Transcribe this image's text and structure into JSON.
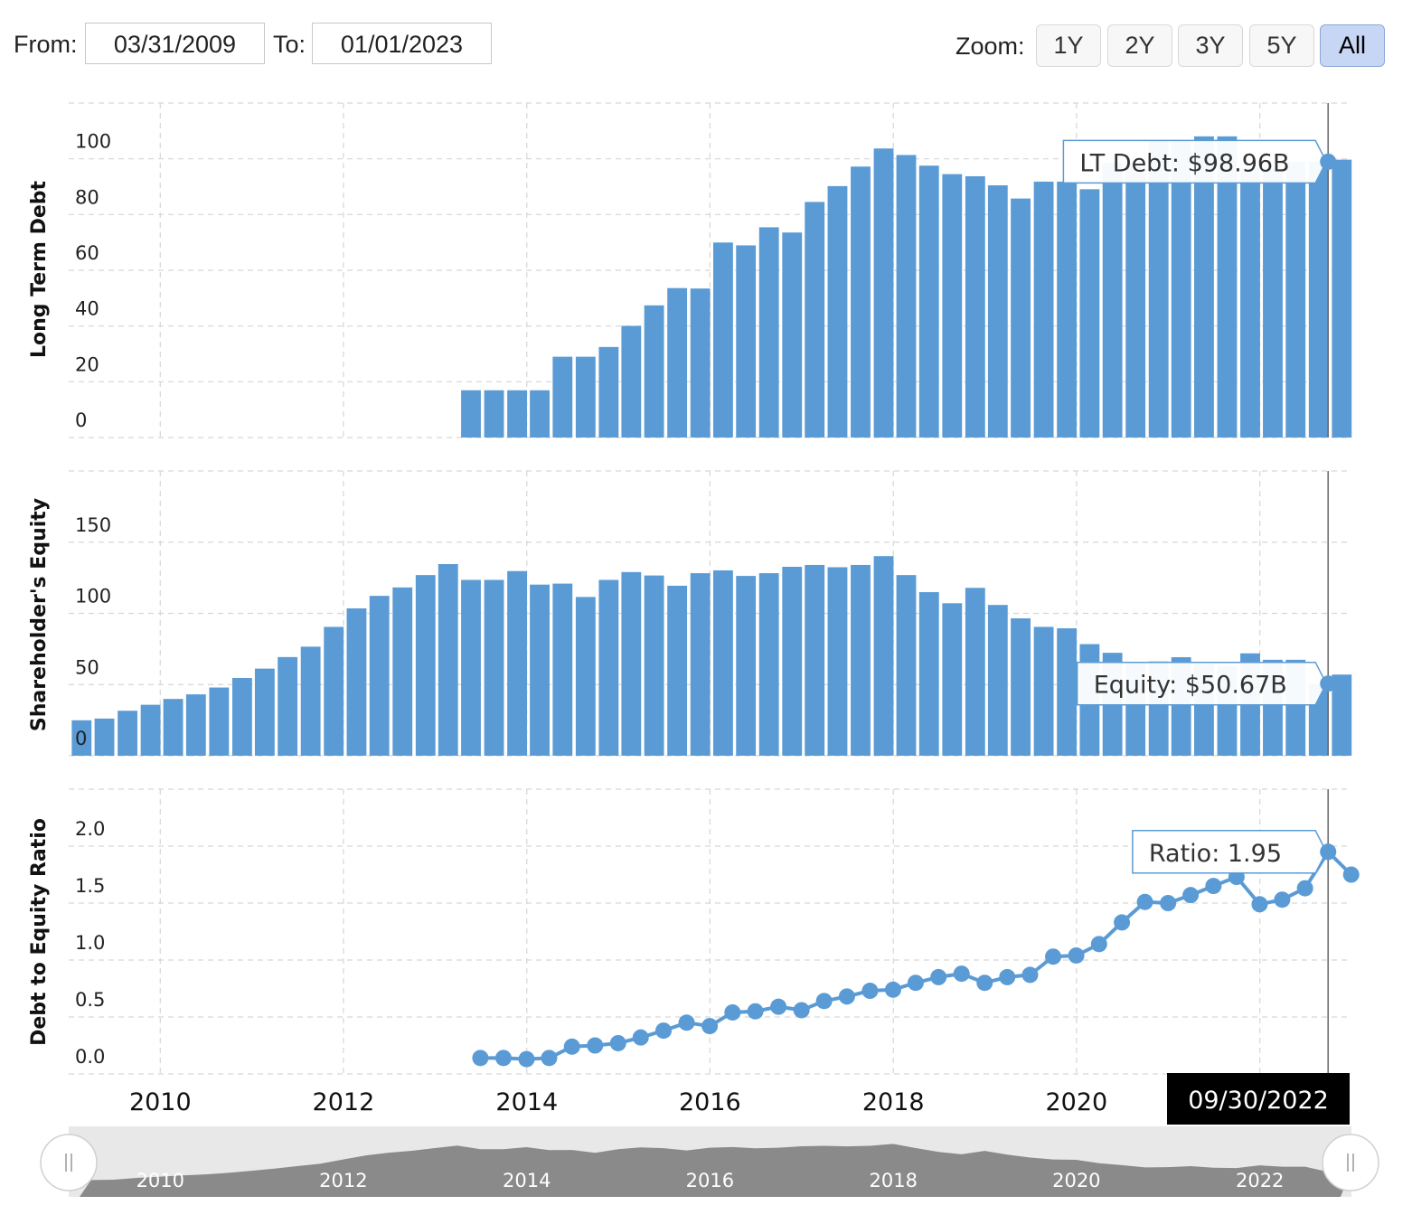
{
  "range": {
    "from_label": "From:",
    "from_value": "03/31/2009",
    "to_label": "To:",
    "to_value": "01/01/2023"
  },
  "zoom": {
    "label": "Zoom:",
    "buttons": [
      "1Y",
      "2Y",
      "3Y",
      "5Y",
      "All"
    ],
    "active": "All"
  },
  "colors": {
    "bar": "#5b9bd5",
    "line": "#5b9bd5",
    "selected_button": "#c7d6f4",
    "navigator_fill": "#8a8a8a"
  },
  "tooltips": {
    "debt": "LT Debt: $98.96B",
    "equity": "Equity: $50.67B",
    "ratio": "Ratio: 1.95"
  },
  "crosshair_date": "09/30/2022",
  "navigator": {
    "ticks": [
      "2010",
      "2012",
      "2014",
      "2016",
      "2018",
      "2020",
      "2022"
    ],
    "left_handle_icon": "grip-icon",
    "right_handle_icon": "grip-icon"
  },
  "chart_data": [
    {
      "type": "bar",
      "ylabel": "Long Term Debt",
      "ylim": [
        0,
        120
      ],
      "yticks": [
        "0",
        "20",
        "40",
        "60",
        "80",
        "100"
      ],
      "x": [
        "2009-03-31",
        "2009-06-30",
        "2009-09-30",
        "2009-12-31",
        "2010-03-31",
        "2010-06-30",
        "2010-09-30",
        "2010-12-31",
        "2011-03-31",
        "2011-06-30",
        "2011-09-30",
        "2011-12-31",
        "2012-03-31",
        "2012-06-30",
        "2012-09-30",
        "2012-12-31",
        "2013-03-31",
        "2013-06-30",
        "2013-09-30",
        "2013-12-31",
        "2014-03-31",
        "2014-06-30",
        "2014-09-30",
        "2014-12-31",
        "2015-03-31",
        "2015-06-30",
        "2015-09-30",
        "2015-12-31",
        "2016-03-31",
        "2016-06-30",
        "2016-09-30",
        "2016-12-31",
        "2017-03-31",
        "2017-06-30",
        "2017-09-30",
        "2017-12-31",
        "2018-03-31",
        "2018-06-30",
        "2018-09-30",
        "2018-12-31",
        "2019-03-31",
        "2019-06-30",
        "2019-09-30",
        "2019-12-31",
        "2020-03-31",
        "2020-06-30",
        "2020-09-30",
        "2020-12-31",
        "2021-03-31",
        "2021-06-30",
        "2021-09-30",
        "2021-12-31",
        "2022-03-31",
        "2022-06-30",
        "2022-09-30",
        "2022-12-31"
      ],
      "values": [
        0,
        0,
        0,
        0,
        0,
        0,
        0,
        0,
        0,
        0,
        0,
        0,
        0,
        0,
        0,
        0,
        0,
        16.96,
        16.96,
        16.96,
        16.96,
        28.99,
        28.99,
        32.48,
        40.06,
        47.42,
        53.62,
        53.46,
        69.96,
        68.94,
        75.43,
        73.56,
        84.53,
        90.2,
        97.21,
        103.7,
        101.36,
        97.54,
        94.5,
        93.74,
        90.48,
        85.75,
        91.81,
        91.81,
        89.09,
        98.67,
        98.67,
        106.63,
        106.5,
        108.05,
        108.05,
        96.5,
        96.5,
        98.96,
        98.96,
        99.69
      ],
      "xticks": [
        "2010",
        "2012",
        "2014",
        "2016",
        "2018",
        "2020"
      ]
    },
    {
      "type": "bar",
      "ylabel": "Shareholder's Equity",
      "ylim": [
        0,
        200
      ],
      "yticks": [
        "0",
        "50",
        "100",
        "150"
      ],
      "x": [
        "2009-03-31",
        "2009-06-30",
        "2009-09-30",
        "2009-12-31",
        "2010-03-31",
        "2010-06-30",
        "2010-09-30",
        "2010-12-31",
        "2011-03-31",
        "2011-06-30",
        "2011-09-30",
        "2011-12-31",
        "2012-03-31",
        "2012-06-30",
        "2012-09-30",
        "2012-12-31",
        "2013-03-31",
        "2013-06-30",
        "2013-09-30",
        "2013-12-31",
        "2014-03-31",
        "2014-06-30",
        "2014-09-30",
        "2014-12-31",
        "2015-03-31",
        "2015-06-30",
        "2015-09-30",
        "2015-12-31",
        "2016-03-31",
        "2016-06-30",
        "2016-09-30",
        "2016-12-31",
        "2017-03-31",
        "2017-06-30",
        "2017-09-30",
        "2017-12-31",
        "2018-03-31",
        "2018-06-30",
        "2018-09-30",
        "2018-12-31",
        "2019-03-31",
        "2019-06-30",
        "2019-09-30",
        "2019-12-31",
        "2020-03-31",
        "2020-06-30",
        "2020-09-30",
        "2020-12-31",
        "2021-03-31",
        "2021-06-30",
        "2021-09-30",
        "2021-12-31",
        "2022-03-31",
        "2022-06-30",
        "2022-09-30",
        "2022-12-31"
      ],
      "values": [
        24.9,
        26.1,
        31.6,
        35.8,
        39.9,
        43.1,
        47.9,
        54.6,
        61.2,
        69.3,
        76.6,
        90.5,
        103.5,
        112.3,
        118.2,
        126.9,
        134.6,
        123.5,
        123.5,
        129.7,
        120.2,
        120.9,
        111.5,
        123.5,
        129.0,
        126.6,
        119.4,
        128.2,
        130.2,
        126.3,
        128.2,
        132.7,
        134.0,
        132.4,
        134.0,
        140.2,
        126.9,
        114.9,
        107.1,
        117.9,
        105.9,
        96.5,
        90.5,
        89.5,
        78.4,
        72.3,
        65.3,
        66.2,
        69.2,
        64.3,
        63.1,
        71.9,
        67.4,
        67.4,
        50.67,
        57.0
      ],
      "xticks": [
        "2010",
        "2012",
        "2014",
        "2016",
        "2018",
        "2020"
      ]
    },
    {
      "type": "line",
      "ylabel": "Debt to Equity Ratio",
      "ylim": [
        0,
        2.5
      ],
      "yticks": [
        "0.0",
        "0.5",
        "1.0",
        "1.5",
        "2.0"
      ],
      "x": [
        "2013-06-30",
        "2013-09-30",
        "2013-12-31",
        "2014-03-31",
        "2014-06-30",
        "2014-09-30",
        "2014-12-31",
        "2015-03-31",
        "2015-06-30",
        "2015-09-30",
        "2015-12-31",
        "2016-03-31",
        "2016-06-30",
        "2016-09-30",
        "2016-12-31",
        "2017-03-31",
        "2017-06-30",
        "2017-09-30",
        "2017-12-31",
        "2018-03-31",
        "2018-06-30",
        "2018-09-30",
        "2018-12-31",
        "2019-03-31",
        "2019-06-30",
        "2019-09-30",
        "2019-12-31",
        "2020-03-31",
        "2020-06-30",
        "2020-09-30",
        "2020-12-31",
        "2021-03-31",
        "2021-06-30",
        "2021-09-30",
        "2021-12-31",
        "2022-03-31",
        "2022-06-30",
        "2022-09-30",
        "2022-12-31"
      ],
      "values": [
        0.14,
        0.14,
        0.13,
        0.14,
        0.24,
        0.25,
        0.27,
        0.32,
        0.38,
        0.45,
        0.42,
        0.54,
        0.55,
        0.59,
        0.56,
        0.64,
        0.68,
        0.73,
        0.74,
        0.8,
        0.85,
        0.88,
        0.8,
        0.85,
        0.87,
        1.03,
        1.04,
        1.14,
        1.33,
        1.51,
        1.5,
        1.57,
        1.65,
        1.73,
        1.49,
        1.53,
        1.63,
        1.95,
        1.75
      ],
      "xticks": [
        "2010",
        "2012",
        "2014",
        "2016",
        "2018",
        "2020"
      ]
    }
  ]
}
